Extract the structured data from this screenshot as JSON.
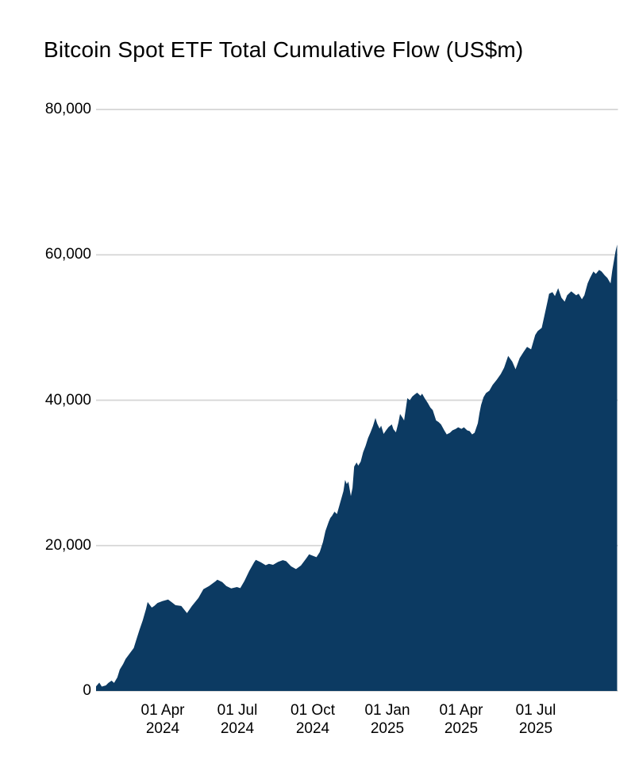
{
  "chart": {
    "title": "Bitcoin Spot ETF Total Cumulative Flow (US$m)"
  },
  "chart_data": {
    "type": "area",
    "title": "Bitcoin Spot ETF Total Cumulative Flow (US$m)",
    "unit": "US$m",
    "xlabel": "",
    "ylabel": "",
    "ylim": [
      0,
      80000
    ],
    "grid": true,
    "legend": false,
    "colors": {
      "area_fill": "#0c3a62",
      "gridline": "#d5d5d5",
      "text": "#000000",
      "background": "#ffffff"
    },
    "x_domain": [
      "2024-01-11",
      "2025-10-08"
    ],
    "y_ticks": [
      {
        "value": 0,
        "label": "0"
      },
      {
        "value": 20000,
        "label": "20,000"
      },
      {
        "value": 40000,
        "label": "40,000"
      },
      {
        "value": 60000,
        "label": "60,000"
      },
      {
        "value": 80000,
        "label": "80,000"
      }
    ],
    "x_ticks": [
      {
        "date": "2024-04-01",
        "line1": "01 Apr",
        "line2": "2024"
      },
      {
        "date": "2024-07-01",
        "line1": "01 Jul",
        "line2": "2024"
      },
      {
        "date": "2024-10-01",
        "line1": "01 Oct",
        "line2": "2024"
      },
      {
        "date": "2025-01-01",
        "line1": "01 Jan",
        "line2": "2025"
      },
      {
        "date": "2025-04-01",
        "line1": "01 Apr",
        "line2": "2025"
      },
      {
        "date": "2025-07-01",
        "line1": "01 Jul",
        "line2": "2025"
      }
    ],
    "points": [
      [
        "2024-01-11",
        630
      ],
      [
        "2024-01-15",
        1150
      ],
      [
        "2024-01-18",
        600
      ],
      [
        "2024-01-23",
        760
      ],
      [
        "2024-01-26",
        1100
      ],
      [
        "2024-01-30",
        1420
      ],
      [
        "2024-02-02",
        1100
      ],
      [
        "2024-02-06",
        1860
      ],
      [
        "2024-02-09",
        2950
      ],
      [
        "2024-02-13",
        3700
      ],
      [
        "2024-02-16",
        4400
      ],
      [
        "2024-02-21",
        5140
      ],
      [
        "2024-02-26",
        5900
      ],
      [
        "2024-02-29",
        7000
      ],
      [
        "2024-03-04",
        8400
      ],
      [
        "2024-03-08",
        9700
      ],
      [
        "2024-03-12",
        11300
      ],
      [
        "2024-03-14",
        12240
      ],
      [
        "2024-03-19",
        11470
      ],
      [
        "2024-03-22",
        11690
      ],
      [
        "2024-03-26",
        12100
      ],
      [
        "2024-04-01",
        12350
      ],
      [
        "2024-04-08",
        12570
      ],
      [
        "2024-04-12",
        12240
      ],
      [
        "2024-04-17",
        11800
      ],
      [
        "2024-04-24",
        11690
      ],
      [
        "2024-05-01",
        10710
      ],
      [
        "2024-05-07",
        11690
      ],
      [
        "2024-05-15",
        12790
      ],
      [
        "2024-05-21",
        13990
      ],
      [
        "2024-05-28",
        14430
      ],
      [
        "2024-06-05",
        15100
      ],
      [
        "2024-06-07",
        15300
      ],
      [
        "2024-06-13",
        14970
      ],
      [
        "2024-06-18",
        14430
      ],
      [
        "2024-06-24",
        14100
      ],
      [
        "2024-07-01",
        14300
      ],
      [
        "2024-07-05",
        14150
      ],
      [
        "2024-07-10",
        15100
      ],
      [
        "2024-07-16",
        16500
      ],
      [
        "2024-07-22",
        17700
      ],
      [
        "2024-07-24",
        18030
      ],
      [
        "2024-07-30",
        17700
      ],
      [
        "2024-08-05",
        17300
      ],
      [
        "2024-08-09",
        17500
      ],
      [
        "2024-08-14",
        17350
      ],
      [
        "2024-08-20",
        17750
      ],
      [
        "2024-08-26",
        18000
      ],
      [
        "2024-08-30",
        17850
      ],
      [
        "2024-09-05",
        17150
      ],
      [
        "2024-09-11",
        16760
      ],
      [
        "2024-09-17",
        17250
      ],
      [
        "2024-09-24",
        18300
      ],
      [
        "2024-09-27",
        18790
      ],
      [
        "2024-10-02",
        18580
      ],
      [
        "2024-10-06",
        18400
      ],
      [
        "2024-10-10",
        19100
      ],
      [
        "2024-10-14",
        20500
      ],
      [
        "2024-10-17",
        22000
      ],
      [
        "2024-10-21",
        23300
      ],
      [
        "2024-10-23",
        23800
      ],
      [
        "2024-10-25",
        24100
      ],
      [
        "2024-10-28",
        24670
      ],
      [
        "2024-10-31",
        24340
      ],
      [
        "2024-11-05",
        26300
      ],
      [
        "2024-11-08",
        27500
      ],
      [
        "2024-11-10",
        29030
      ],
      [
        "2024-11-12",
        28480
      ],
      [
        "2024-11-14",
        28800
      ],
      [
        "2024-11-17",
        26800
      ],
      [
        "2024-11-19",
        27940
      ],
      [
        "2024-11-21",
        30880
      ],
      [
        "2024-11-24",
        31430
      ],
      [
        "2024-11-26",
        31000
      ],
      [
        "2024-11-29",
        31540
      ],
      [
        "2024-12-02",
        32850
      ],
      [
        "2024-12-05",
        33720
      ],
      [
        "2024-12-08",
        34810
      ],
      [
        "2024-12-11",
        35580
      ],
      [
        "2024-12-14",
        36450
      ],
      [
        "2024-12-17",
        37550
      ],
      [
        "2024-12-19",
        36800
      ],
      [
        "2024-12-22",
        36100
      ],
      [
        "2024-12-24",
        36500
      ],
      [
        "2024-12-27",
        35360
      ],
      [
        "2024-12-30",
        35850
      ],
      [
        "2025-01-02",
        36300
      ],
      [
        "2025-01-06",
        36670
      ],
      [
        "2025-01-08",
        36000
      ],
      [
        "2025-01-11",
        35580
      ],
      [
        "2025-01-14",
        36900
      ],
      [
        "2025-01-16",
        38100
      ],
      [
        "2025-01-19",
        37600
      ],
      [
        "2025-01-21",
        37220
      ],
      [
        "2025-01-25",
        40280
      ],
      [
        "2025-01-28",
        40000
      ],
      [
        "2025-01-31",
        40500
      ],
      [
        "2025-02-03",
        40800
      ],
      [
        "2025-02-06",
        41040
      ],
      [
        "2025-02-10",
        40600
      ],
      [
        "2025-02-12",
        40900
      ],
      [
        "2025-02-15",
        40300
      ],
      [
        "2025-02-19",
        39600
      ],
      [
        "2025-02-22",
        39000
      ],
      [
        "2025-02-25",
        38640
      ],
      [
        "2025-03-01",
        37220
      ],
      [
        "2025-03-04",
        37000
      ],
      [
        "2025-03-07",
        36670
      ],
      [
        "2025-03-11",
        35850
      ],
      [
        "2025-03-14",
        35300
      ],
      [
        "2025-03-18",
        35520
      ],
      [
        "2025-03-21",
        35850
      ],
      [
        "2025-03-25",
        36060
      ],
      [
        "2025-03-28",
        36280
      ],
      [
        "2025-04-01",
        36060
      ],
      [
        "2025-04-04",
        36280
      ],
      [
        "2025-04-08",
        35850
      ],
      [
        "2025-04-11",
        35740
      ],
      [
        "2025-04-14",
        35300
      ],
      [
        "2025-04-17",
        35520
      ],
      [
        "2025-04-21",
        36830
      ],
      [
        "2025-04-23",
        38250
      ],
      [
        "2025-04-25",
        39340
      ],
      [
        "2025-04-28",
        40430
      ],
      [
        "2025-05-01",
        40980
      ],
      [
        "2025-05-05",
        41310
      ],
      [
        "2025-05-09",
        42100
      ],
      [
        "2025-05-14",
        42800
      ],
      [
        "2025-05-19",
        43600
      ],
      [
        "2025-05-23",
        44480
      ],
      [
        "2025-05-28",
        46100
      ],
      [
        "2025-06-02",
        45300
      ],
      [
        "2025-06-06",
        44260
      ],
      [
        "2025-06-11",
        45800
      ],
      [
        "2025-06-16",
        46670
      ],
      [
        "2025-06-20",
        47330
      ],
      [
        "2025-06-25",
        47000
      ],
      [
        "2025-06-30",
        48970
      ],
      [
        "2025-07-03",
        49510
      ],
      [
        "2025-07-08",
        49950
      ],
      [
        "2025-07-11",
        51500
      ],
      [
        "2025-07-15",
        53600
      ],
      [
        "2025-07-17",
        54650
      ],
      [
        "2025-07-21",
        54870
      ],
      [
        "2025-07-24",
        54320
      ],
      [
        "2025-07-28",
        55420
      ],
      [
        "2025-08-01",
        54100
      ],
      [
        "2025-08-05",
        53560
      ],
      [
        "2025-08-08",
        54430
      ],
      [
        "2025-08-13",
        54980
      ],
      [
        "2025-08-19",
        54430
      ],
      [
        "2025-08-22",
        54650
      ],
      [
        "2025-08-26",
        53890
      ],
      [
        "2025-08-29",
        54430
      ],
      [
        "2025-09-02",
        56070
      ],
      [
        "2025-09-05",
        56840
      ],
      [
        "2025-09-09",
        57710
      ],
      [
        "2025-09-12",
        57380
      ],
      [
        "2025-09-16",
        57930
      ],
      [
        "2025-09-19",
        57710
      ],
      [
        "2025-09-23",
        57170
      ],
      [
        "2025-09-26",
        56840
      ],
      [
        "2025-09-30",
        56070
      ],
      [
        "2025-10-02",
        57800
      ],
      [
        "2025-10-06",
        60440
      ],
      [
        "2025-10-08",
        61420
      ]
    ]
  }
}
